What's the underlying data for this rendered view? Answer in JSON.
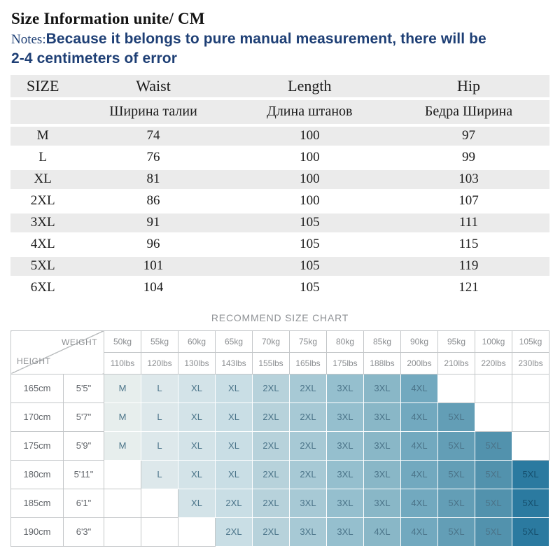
{
  "page": {
    "title": "Size Information unite/ CM",
    "notes_label": "Notes:",
    "notes_line1": "Because it belongs to pure manual measurement, there will be",
    "notes_line2": "2-4 centimeters of error"
  },
  "size_table": {
    "header_en": [
      "SIZE",
      "Waist",
      "Length",
      "Hip"
    ],
    "header_ru": [
      "",
      "Ширина талии",
      "Длина штанов",
      "Бедра Ширина"
    ],
    "rows": [
      {
        "size": "M",
        "waist": "74",
        "length": "100",
        "hip": "97"
      },
      {
        "size": "L",
        "waist": "76",
        "length": "100",
        "hip": "99"
      },
      {
        "size": "XL",
        "waist": "81",
        "length": "100",
        "hip": "103"
      },
      {
        "size": "2XL",
        "waist": "86",
        "length": "100",
        "hip": "107"
      },
      {
        "size": "3XL",
        "waist": "91",
        "length": "105",
        "hip": "111"
      },
      {
        "size": "4XL",
        "waist": "96",
        "length": "105",
        "hip": "115"
      },
      {
        "size": "5XL",
        "waist": "101",
        "length": "105",
        "hip": "119"
      },
      {
        "size": "6XL",
        "waist": "104",
        "length": "105",
        "hip": "121"
      }
    ]
  },
  "recommend_chart": {
    "title": "RECOMMEND SIZE CHART",
    "weight_label": "WEIGHT",
    "height_label": "HEIGHT",
    "weights_kg": [
      "50kg",
      "55kg",
      "60kg",
      "65kg",
      "70kg",
      "75kg",
      "80kg",
      "85kg",
      "90kg",
      "95kg",
      "100kg",
      "105kg"
    ],
    "weights_lbs": [
      "110lbs",
      "120lbs",
      "130lbs",
      "143lbs",
      "155lbs",
      "165lbs",
      "175lbs",
      "188lbs",
      "200lbs",
      "210lbs",
      "220lbs",
      "230lbs"
    ],
    "rows": [
      {
        "cm": "165cm",
        "ft": "5'5\"",
        "cells": [
          "M",
          "L",
          "XL",
          "XL",
          "2XL",
          "2XL",
          "3XL",
          "3XL",
          "4XL",
          "",
          "",
          ""
        ]
      },
      {
        "cm": "170cm",
        "ft": "5'7\"",
        "cells": [
          "M",
          "L",
          "XL",
          "XL",
          "2XL",
          "2XL",
          "3XL",
          "3XL",
          "4XL",
          "5XL",
          "",
          ""
        ]
      },
      {
        "cm": "175cm",
        "ft": "5'9\"",
        "cells": [
          "M",
          "L",
          "XL",
          "XL",
          "2XL",
          "2XL",
          "3XL",
          "3XL",
          "4XL",
          "5XL",
          "5XL",
          ""
        ]
      },
      {
        "cm": "180cm",
        "ft": "5'11\"",
        "cells": [
          "",
          "L",
          "XL",
          "XL",
          "2XL",
          "2XL",
          "3XL",
          "3XL",
          "4XL",
          "5XL",
          "5XL",
          "5XL"
        ]
      },
      {
        "cm": "185cm",
        "ft": "6'1\"",
        "cells": [
          "",
          "",
          "XL",
          "2XL",
          "2XL",
          "3XL",
          "3XL",
          "3XL",
          "4XL",
          "5XL",
          "5XL",
          "5XL"
        ]
      },
      {
        "cm": "190cm",
        "ft": "6'3\"",
        "cells": [
          "",
          "",
          "",
          "2XL",
          "2XL",
          "3XL",
          "3XL",
          "4XL",
          "4XL",
          "5XL",
          "5XL",
          "5XL"
        ]
      }
    ],
    "colors": {
      "column_fills": [
        "#e7eeed",
        "#dde8eb",
        "#d3e3e8",
        "#c9dee5",
        "#b7d2db",
        "#a7c9d5",
        "#95bfce",
        "#89b7c7",
        "#72a9bf",
        "#639eb6",
        "#5292ad",
        "#2b7aa0"
      ],
      "cell_text": "#4b7489",
      "cell_text_dark": "#16506e",
      "notes_text": "#1e3f75",
      "stripe": "#ebebeb",
      "grid_line": "#c3c6c8"
    }
  }
}
